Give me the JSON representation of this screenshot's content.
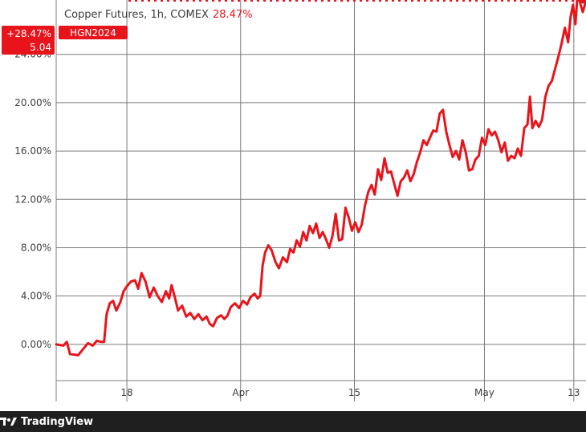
{
  "header": {
    "title": "Copper Futures, 1h, COMEX",
    "change": "28.47%"
  },
  "price_tag": {
    "change": "+28.47%",
    "value": "5.04",
    "symbol": "HGN2024"
  },
  "footer": {
    "brand": "TradingView"
  },
  "colors": {
    "line": "#e8141c",
    "grid": "#7c7c7c",
    "footer_bg": "#1f1f1f"
  },
  "chart_data": {
    "type": "line",
    "title": "Copper Futures, 1h, COMEX",
    "xlabel": "",
    "ylabel": "",
    "x_ticks": [
      {
        "label": "18",
        "day": 18
      },
      {
        "label": "Apr",
        "day": 32
      },
      {
        "label": "15",
        "day": 46
      },
      {
        "label": "May",
        "day": 62
      },
      {
        "label": "13",
        "day": 73
      }
    ],
    "y_ticks": [
      "0.00%",
      "4.00%",
      "8.00%",
      "12.00%",
      "16.00%",
      "20.00%",
      "24.00%"
    ],
    "y_tick_values": [
      0,
      4,
      8,
      12,
      16,
      20,
      24
    ],
    "xlim": [
      9.3,
      74.5
    ],
    "ylim": [
      -3,
      28.5
    ],
    "grid": true,
    "series": [
      {
        "x_unit": "day of period (Mar 1 = 1)",
        "points": [
          [
            9.3,
            0.0
          ],
          [
            10.2,
            -0.1
          ],
          [
            10.6,
            0.2
          ],
          [
            11.0,
            -0.8
          ],
          [
            12.0,
            -0.9
          ],
          [
            12.6,
            -0.4
          ],
          [
            13.2,
            0.1
          ],
          [
            13.8,
            -0.1
          ],
          [
            14.3,
            0.3
          ],
          [
            14.8,
            0.2
          ],
          [
            15.2,
            0.2
          ],
          [
            15.5,
            2.5
          ],
          [
            15.9,
            3.4
          ],
          [
            16.3,
            3.6
          ],
          [
            16.7,
            2.8
          ],
          [
            17.2,
            3.5
          ],
          [
            17.6,
            4.4
          ],
          [
            18.0,
            4.8
          ],
          [
            18.5,
            5.2
          ],
          [
            19.0,
            5.3
          ],
          [
            19.4,
            4.6
          ],
          [
            19.8,
            5.9
          ],
          [
            20.3,
            5.2
          ],
          [
            20.8,
            3.9
          ],
          [
            21.3,
            4.7
          ],
          [
            21.8,
            4.0
          ],
          [
            22.3,
            3.5
          ],
          [
            22.8,
            4.4
          ],
          [
            23.2,
            3.8
          ],
          [
            23.5,
            4.9
          ],
          [
            23.9,
            3.9
          ],
          [
            24.3,
            2.8
          ],
          [
            24.8,
            3.2
          ],
          [
            25.3,
            2.3
          ],
          [
            25.8,
            2.6
          ],
          [
            26.3,
            2.1
          ],
          [
            26.8,
            2.5
          ],
          [
            27.3,
            2.0
          ],
          [
            27.8,
            2.3
          ],
          [
            28.2,
            1.7
          ],
          [
            28.6,
            1.5
          ],
          [
            29.1,
            2.2
          ],
          [
            29.6,
            2.4
          ],
          [
            30.0,
            2.1
          ],
          [
            30.4,
            2.4
          ],
          [
            30.8,
            3.1
          ],
          [
            31.3,
            3.4
          ],
          [
            31.8,
            3.0
          ],
          [
            32.3,
            3.6
          ],
          [
            32.8,
            3.3
          ],
          [
            33.2,
            3.9
          ],
          [
            33.7,
            4.2
          ],
          [
            34.1,
            3.8
          ],
          [
            34.4,
            4.0
          ],
          [
            34.7,
            6.5
          ],
          [
            35.0,
            7.6
          ],
          [
            35.4,
            8.2
          ],
          [
            35.8,
            7.8
          ],
          [
            36.3,
            6.8
          ],
          [
            36.7,
            6.3
          ],
          [
            37.2,
            7.2
          ],
          [
            37.7,
            6.8
          ],
          [
            38.1,
            7.9
          ],
          [
            38.5,
            7.6
          ],
          [
            38.9,
            8.6
          ],
          [
            39.3,
            8.1
          ],
          [
            39.7,
            9.3
          ],
          [
            40.1,
            8.6
          ],
          [
            40.5,
            9.8
          ],
          [
            40.9,
            9.2
          ],
          [
            41.3,
            10.0
          ],
          [
            41.7,
            8.8
          ],
          [
            42.1,
            9.3
          ],
          [
            42.5,
            8.7
          ],
          [
            42.9,
            8.0
          ],
          [
            43.3,
            9.0
          ],
          [
            43.7,
            10.8
          ],
          [
            44.1,
            8.6
          ],
          [
            44.5,
            8.7
          ],
          [
            44.9,
            11.3
          ],
          [
            45.3,
            10.5
          ],
          [
            45.7,
            9.4
          ],
          [
            46.1,
            10.1
          ],
          [
            46.5,
            9.3
          ],
          [
            46.9,
            9.9
          ],
          [
            47.3,
            11.5
          ],
          [
            47.7,
            12.6
          ],
          [
            48.1,
            13.2
          ],
          [
            48.5,
            12.4
          ],
          [
            48.9,
            14.5
          ],
          [
            49.3,
            13.6
          ],
          [
            49.7,
            15.4
          ],
          [
            50.1,
            14.2
          ],
          [
            50.5,
            14.3
          ],
          [
            50.9,
            13.3
          ],
          [
            51.3,
            12.3
          ],
          [
            51.7,
            13.5
          ],
          [
            52.1,
            13.8
          ],
          [
            52.5,
            14.4
          ],
          [
            52.9,
            13.5
          ],
          [
            53.3,
            14.1
          ],
          [
            53.7,
            15.1
          ],
          [
            54.1,
            15.9
          ],
          [
            54.5,
            16.9
          ],
          [
            54.9,
            16.5
          ],
          [
            55.3,
            17.1
          ],
          [
            55.7,
            17.7
          ],
          [
            56.1,
            17.6
          ],
          [
            56.5,
            19.1
          ],
          [
            56.9,
            19.4
          ],
          [
            57.3,
            17.6
          ],
          [
            57.7,
            16.5
          ],
          [
            58.1,
            15.5
          ],
          [
            58.5,
            16.0
          ],
          [
            58.9,
            15.3
          ],
          [
            59.3,
            16.9
          ],
          [
            59.7,
            15.9
          ],
          [
            60.1,
            14.4
          ],
          [
            60.5,
            14.5
          ],
          [
            60.9,
            15.3
          ],
          [
            61.3,
            15.6
          ],
          [
            61.7,
            17.1
          ],
          [
            62.1,
            16.5
          ],
          [
            62.5,
            17.8
          ],
          [
            62.9,
            17.3
          ],
          [
            63.3,
            17.6
          ],
          [
            63.7,
            16.9
          ],
          [
            64.1,
            15.9
          ],
          [
            64.5,
            16.7
          ],
          [
            64.9,
            15.2
          ],
          [
            65.3,
            15.6
          ],
          [
            65.7,
            15.4
          ],
          [
            66.1,
            16.2
          ],
          [
            66.5,
            15.6
          ],
          [
            66.9,
            17.9
          ],
          [
            67.3,
            18.2
          ],
          [
            67.6,
            20.5
          ],
          [
            67.9,
            17.9
          ],
          [
            68.3,
            18.5
          ],
          [
            68.7,
            18.0
          ],
          [
            69.1,
            18.6
          ],
          [
            69.5,
            20.5
          ],
          [
            69.9,
            21.4
          ],
          [
            70.3,
            21.8
          ],
          [
            70.7,
            22.8
          ],
          [
            71.1,
            23.8
          ],
          [
            71.5,
            24.9
          ],
          [
            71.9,
            26.2
          ],
          [
            72.3,
            25.0
          ],
          [
            72.6,
            27.1
          ],
          [
            72.9,
            28.1
          ],
          [
            73.2,
            26.5
          ],
          [
            73.5,
            29.4
          ],
          [
            73.8,
            28.2
          ],
          [
            74.1,
            27.5
          ],
          [
            74.5,
            28.47
          ]
        ]
      }
    ]
  }
}
